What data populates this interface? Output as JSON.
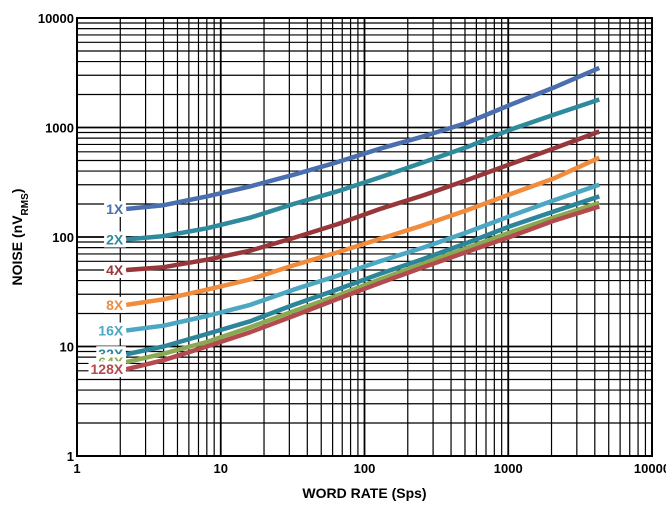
{
  "chart_data": {
    "type": "line",
    "title": "",
    "xlabel": "WORD RATE (Sps)",
    "ylabel": {
      "main": "NOISE (nV",
      "sub": "RMS",
      "tail": ")"
    },
    "xscale": "log",
    "yscale": "log",
    "xlim": [
      1,
      10000
    ],
    "ylim": [
      1,
      10000
    ],
    "x_ticks": [
      "1",
      "10",
      "100",
      "1000",
      "10000"
    ],
    "y_ticks": [
      "1",
      "10",
      "100",
      "1000",
      "10000"
    ],
    "grid": true,
    "legend": "inline-left",
    "series": [
      {
        "name": "1X",
        "color": "#4a6fae",
        "points": [
          [
            2.2,
            180
          ],
          [
            4,
            195
          ],
          [
            8,
            235
          ],
          [
            16,
            290
          ],
          [
            32,
            370
          ],
          [
            64,
            480
          ],
          [
            128,
            640
          ],
          [
            256,
            830
          ],
          [
            512,
            1100
          ],
          [
            1024,
            1600
          ],
          [
            2048,
            2300
          ],
          [
            4300,
            3500
          ]
        ]
      },
      {
        "name": "2X",
        "color": "#2f8a9e",
        "points": [
          [
            2.2,
            95
          ],
          [
            4,
            102
          ],
          [
            8,
            120
          ],
          [
            16,
            150
          ],
          [
            32,
            200
          ],
          [
            64,
            260
          ],
          [
            128,
            350
          ],
          [
            256,
            480
          ],
          [
            512,
            660
          ],
          [
            1024,
            950
          ],
          [
            2048,
            1300
          ],
          [
            4300,
            1800
          ]
        ]
      },
      {
        "name": "4X",
        "color": "#98373a",
        "points": [
          [
            2.2,
            50
          ],
          [
            4,
            53
          ],
          [
            8,
            62
          ],
          [
            16,
            75
          ],
          [
            32,
            98
          ],
          [
            64,
            130
          ],
          [
            128,
            180
          ],
          [
            256,
            240
          ],
          [
            512,
            330
          ],
          [
            1024,
            460
          ],
          [
            2048,
            640
          ],
          [
            4300,
            920
          ]
        ]
      },
      {
        "name": "8X",
        "color": "#f08c3c",
        "points": [
          [
            2.2,
            24
          ],
          [
            4,
            27
          ],
          [
            8,
            33
          ],
          [
            16,
            41
          ],
          [
            32,
            55
          ],
          [
            64,
            72
          ],
          [
            128,
            96
          ],
          [
            256,
            128
          ],
          [
            512,
            175
          ],
          [
            1024,
            245
          ],
          [
            2048,
            340
          ],
          [
            4300,
            530
          ]
        ]
      },
      {
        "name": "16X",
        "color": "#4ba7c2",
        "points": [
          [
            2.2,
            14
          ],
          [
            4,
            15.5
          ],
          [
            8,
            19
          ],
          [
            16,
            24
          ],
          [
            32,
            33
          ],
          [
            64,
            44
          ],
          [
            128,
            60
          ],
          [
            256,
            80
          ],
          [
            512,
            110
          ],
          [
            1024,
            155
          ],
          [
            2048,
            215
          ],
          [
            4300,
            300
          ]
        ]
      },
      {
        "name": "32X",
        "color": "#2c8598",
        "points": [
          [
            2.2,
            8.5
          ],
          [
            4,
            10
          ],
          [
            8,
            13
          ],
          [
            16,
            17
          ],
          [
            32,
            24
          ],
          [
            64,
            33
          ],
          [
            128,
            46
          ],
          [
            256,
            63
          ],
          [
            512,
            88
          ],
          [
            1024,
            125
          ],
          [
            2048,
            170
          ],
          [
            4300,
            235
          ]
        ]
      },
      {
        "name": "64X",
        "color": "#8aaa52",
        "points": [
          [
            2.2,
            7.2
          ],
          [
            4,
            8.6
          ],
          [
            8,
            11
          ],
          [
            16,
            15
          ],
          [
            32,
            21
          ],
          [
            64,
            29
          ],
          [
            128,
            41
          ],
          [
            256,
            57
          ],
          [
            512,
            79
          ],
          [
            1024,
            110
          ],
          [
            2048,
            150
          ],
          [
            4300,
            205
          ]
        ]
      },
      {
        "name": "128X",
        "color": "#b34a4e",
        "points": [
          [
            2.2,
            6.2
          ],
          [
            4,
            7.5
          ],
          [
            8,
            10
          ],
          [
            16,
            13.5
          ],
          [
            32,
            19
          ],
          [
            64,
            27
          ],
          [
            128,
            38
          ],
          [
            256,
            53
          ],
          [
            512,
            73
          ],
          [
            1024,
            100
          ],
          [
            2048,
            140
          ],
          [
            4300,
            190
          ]
        ]
      }
    ]
  }
}
